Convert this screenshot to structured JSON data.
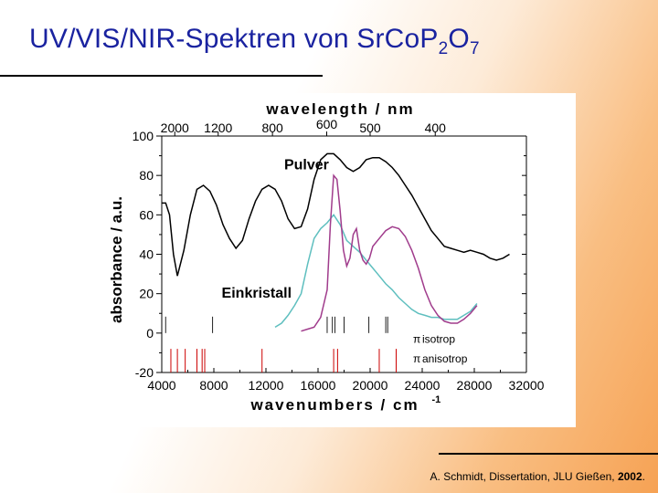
{
  "slide": {
    "title_main": "UV/VIS/NIR-Spektren von SrCoP",
    "title_sub1": "2",
    "title_mid": "O",
    "title_sub2": "7",
    "footer_text": "A. Schmidt, Dissertation, JLU Gießen, ",
    "footer_year": "2002",
    "footer_end": "."
  },
  "chart_data": {
    "type": "line",
    "top_axis_label": "wavelength  /  nm",
    "top_ticks": [
      "2000",
      "1200",
      "800",
      "600",
      "500",
      "400"
    ],
    "top_tick_wavelengths_nm": [
      2000,
      1200,
      800,
      600,
      500,
      400
    ],
    "xlabel": "wavenumbers  /  cm",
    "xlabel_sup": "-1",
    "ylabel": "absorbance / a.u.",
    "xlim": [
      4000,
      32000
    ],
    "ylim": [
      -20,
      100
    ],
    "xticks": [
      4000,
      8000,
      12000,
      16000,
      20000,
      24000,
      28000,
      32000
    ],
    "yticks": [
      -20,
      0,
      20,
      40,
      60,
      80,
      100
    ],
    "annotations": {
      "pulver": "Pulver",
      "einkristall": "Einkristall"
    },
    "legend": {
      "position": "bottom-right",
      "symbol": "π",
      "isotrop": "isotrop",
      "anisotrop": "anisotrop"
    },
    "colors": {
      "pulver": "#000000",
      "isotrop": "#5fbfbf",
      "anisotrop": "#a03c8c",
      "red_marks": "#cc0000",
      "text_pulver": "#000000",
      "text_einkristall": "#b02090"
    },
    "series": [
      {
        "key": "pulver",
        "x": [
          4000,
          4300,
          4600,
          4900,
          5200,
          5700,
          6200,
          6700,
          7200,
          7700,
          8200,
          8700,
          9200,
          9700,
          10200,
          10700,
          11200,
          11700,
          12200,
          12700,
          13200,
          13700,
          14200,
          14700,
          15200,
          15700,
          16200,
          16700,
          17200,
          17700,
          18200,
          18700,
          19200,
          19700,
          20200,
          20700,
          21200,
          21700,
          22200,
          22700,
          23200,
          23700,
          24200,
          24700,
          25200,
          25700,
          26200,
          26700,
          27200,
          27700,
          28200,
          28700,
          29200,
          29700,
          30200,
          30700
        ],
        "y": [
          66,
          66,
          60,
          40,
          29,
          42,
          60,
          73,
          75,
          72,
          65,
          55,
          48,
          43,
          47,
          58,
          67,
          73,
          75,
          73,
          67,
          58,
          53,
          54,
          63,
          78,
          88,
          91,
          91,
          88,
          84,
          82,
          84,
          88,
          89,
          89,
          87,
          84,
          80,
          75,
          70,
          64,
          58,
          52,
          48,
          44,
          43,
          42,
          41,
          42,
          41,
          40,
          38,
          37,
          38,
          40
        ]
      },
      {
        "key": "isotrop",
        "x": [
          12700,
          13200,
          13700,
          14200,
          14700,
          15200,
          15700,
          16200,
          16700,
          17200,
          17700,
          18200,
          18700,
          19200,
          19700,
          20200,
          20700,
          21200,
          21700,
          22200,
          22700,
          23200,
          23700,
          24200,
          24700,
          25200,
          25700,
          26200,
          26700,
          27200,
          27700,
          28200
        ],
        "y": [
          3,
          5,
          9,
          14,
          20,
          35,
          48,
          53,
          56,
          60,
          55,
          47,
          44,
          41,
          37,
          33,
          29,
          25,
          22,
          18,
          15,
          12,
          10,
          9,
          8,
          8,
          7,
          7,
          7,
          9,
          11,
          15
        ]
      },
      {
        "key": "anisotrop",
        "x": [
          14700,
          15200,
          15700,
          16200,
          16700,
          16950,
          17200,
          17450,
          17700,
          17950,
          18200,
          18450,
          18700,
          18950,
          19200,
          19450,
          19700,
          19950,
          20200,
          20700,
          21200,
          21700,
          22200,
          22700,
          23200,
          23700,
          24200,
          24700,
          25200,
          25700,
          26200,
          26700,
          27200,
          27700,
          28200
        ],
        "y": [
          1,
          2,
          3,
          8,
          22,
          55,
          80,
          78,
          62,
          42,
          34,
          38,
          50,
          53,
          42,
          37,
          35,
          38,
          44,
          48,
          52,
          54,
          53,
          49,
          42,
          33,
          22,
          14,
          9,
          6,
          5,
          5,
          7,
          10,
          14
        ]
      }
    ],
    "isotrop_marks_x": [
      4300,
      7900,
      16700,
      17100,
      17300,
      18000,
      19900,
      21200,
      21350
    ],
    "red_marks_x": [
      4700,
      5200,
      5800,
      6700,
      7100,
      7300,
      11700,
      17200,
      17500,
      20700,
      22000
    ]
  }
}
